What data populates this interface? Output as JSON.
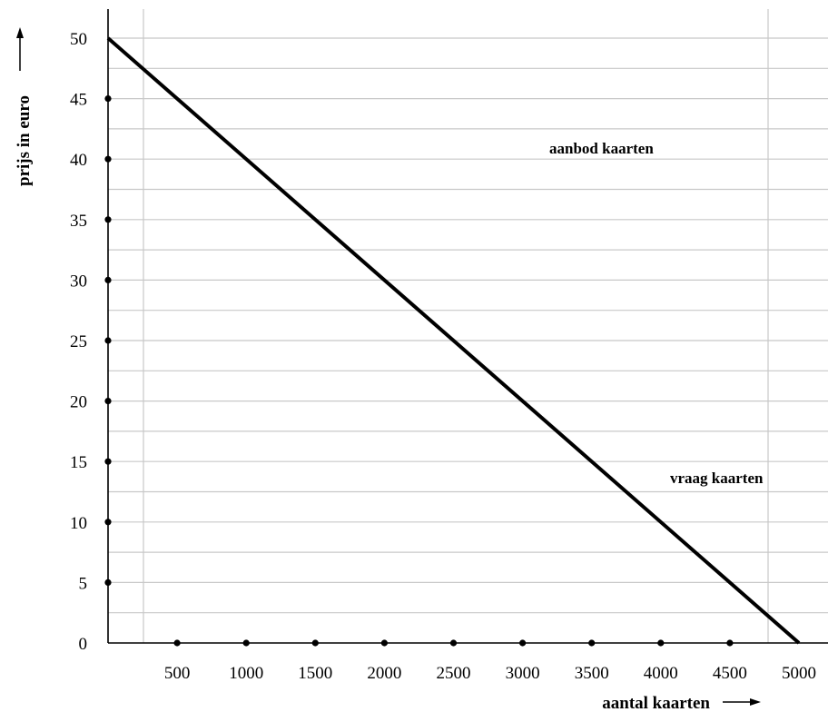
{
  "chart_data": {
    "type": "line",
    "xlabel": "aantal kaarten",
    "ylabel": "prijs in euro",
    "xlim": [
      0,
      5000
    ],
    "ylim": [
      0,
      50
    ],
    "x_ticks": [
      {
        "value": 500,
        "label": "500"
      },
      {
        "value": 1000,
        "label": "1000"
      },
      {
        "value": 1500,
        "label": "1500"
      },
      {
        "value": 2000,
        "label": "2000"
      },
      {
        "value": 2500,
        "label": "2500"
      },
      {
        "value": 3000,
        "label": "3000"
      },
      {
        "value": 3500,
        "label": "3500"
      },
      {
        "value": 4000,
        "label": "4000"
      },
      {
        "value": 4500,
        "label": "4500"
      },
      {
        "value": 5000,
        "label": "5000"
      }
    ],
    "y_ticks": [
      {
        "value": 0,
        "label": "0"
      },
      {
        "value": 5,
        "label": "5"
      },
      {
        "value": 10,
        "label": "10"
      },
      {
        "value": 15,
        "label": "15"
      },
      {
        "value": 20,
        "label": "20"
      },
      {
        "value": 25,
        "label": "25"
      },
      {
        "value": 30,
        "label": "30"
      },
      {
        "value": 35,
        "label": "35"
      },
      {
        "value": 40,
        "label": "40"
      },
      {
        "value": 45,
        "label": "45"
      },
      {
        "value": 50,
        "label": "50"
      }
    ],
    "series": [
      {
        "x": [
          0,
          5000
        ],
        "y": [
          50,
          0
        ]
      }
    ],
    "annotations": [
      {
        "text": "aanbod kaarten"
      },
      {
        "text": "vraag kaarten"
      }
    ],
    "grid": true,
    "colors": {
      "line": "#000000",
      "grid": "#c8c8c8",
      "axis": "#000000"
    }
  }
}
